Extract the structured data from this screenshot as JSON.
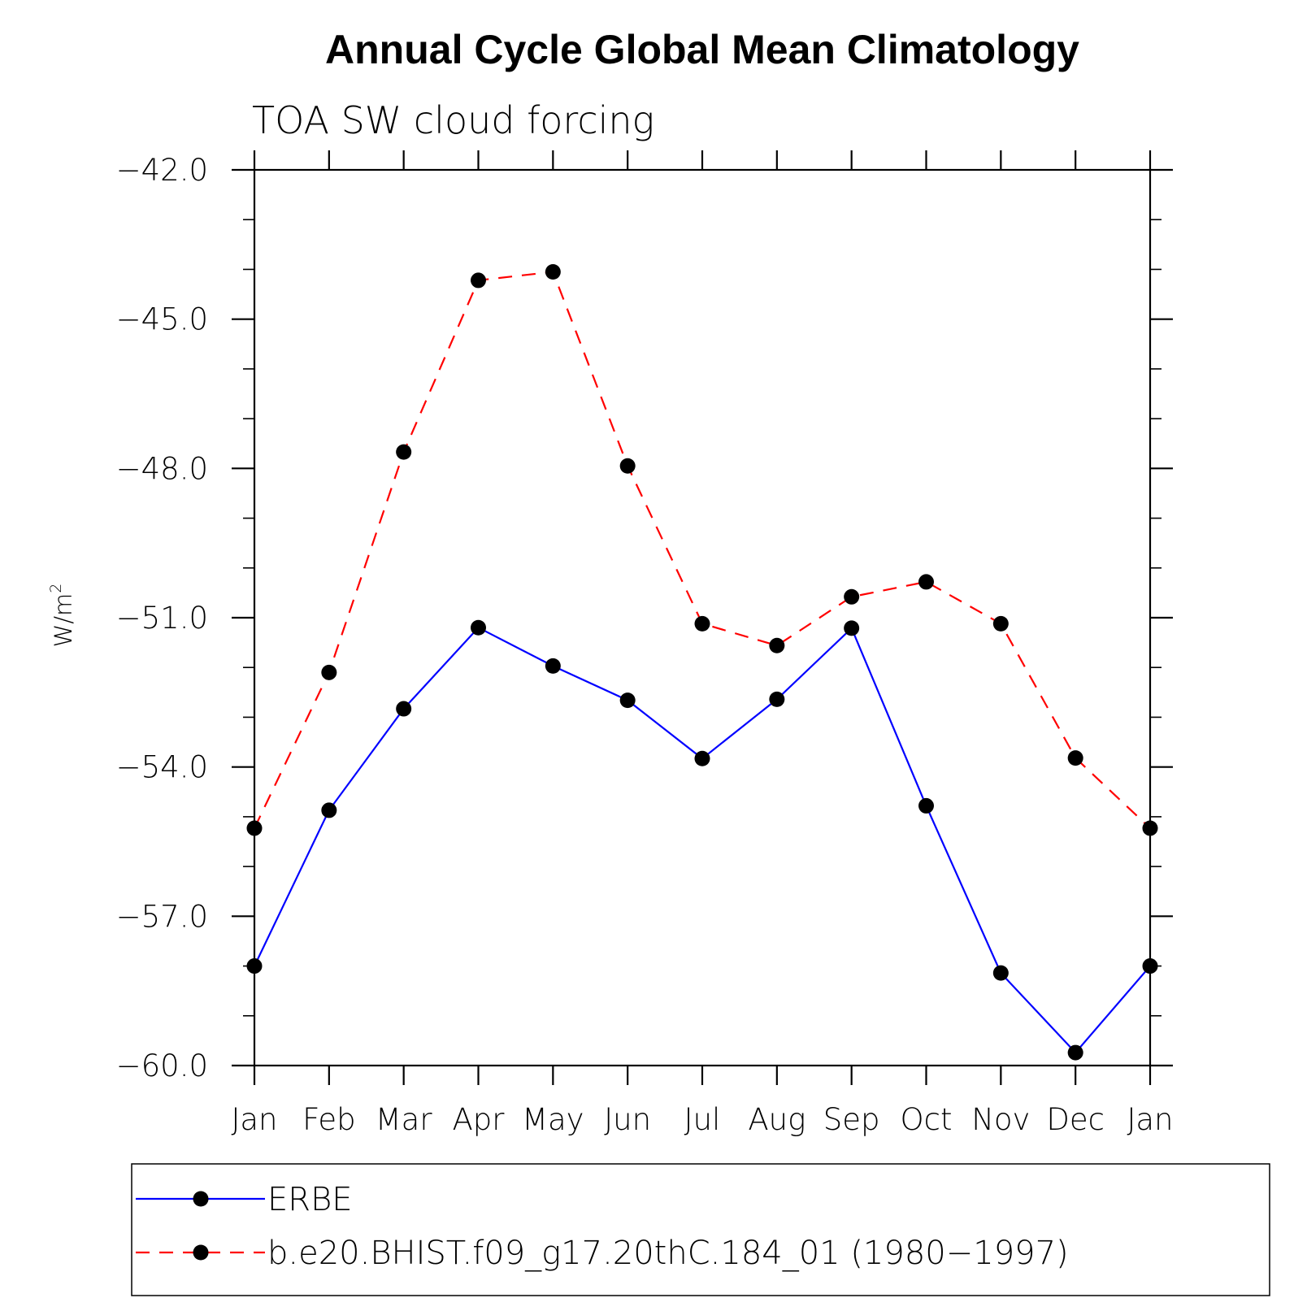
{
  "chart_data": {
    "type": "line",
    "title": "Annual Cycle Global Mean Climatology",
    "subtitle": "TOA SW cloud forcing",
    "ylabel": "W/m",
    "ylabel_sup": "2",
    "xlabel": "",
    "categories": [
      "Jan",
      "Feb",
      "Mar",
      "Apr",
      "May",
      "Jun",
      "Jul",
      "Aug",
      "Sep",
      "Oct",
      "Nov",
      "Dec",
      "Jan"
    ],
    "ylim": [
      -60.0,
      -42.0
    ],
    "yticks": [
      -42.0,
      -45.0,
      -48.0,
      -51.0,
      -54.0,
      -57.0,
      -60.0
    ],
    "ytick_labels": [
      "−42.0",
      "−45.0",
      "−48.0",
      "−51.0",
      "−54.0",
      "−57.0",
      "−60.0"
    ],
    "yminor_step": 1.0,
    "grid": false,
    "legend_position": "bottom",
    "series": [
      {
        "name": "ERBE",
        "color": "#0000ff",
        "dash": "solid",
        "values": [
          -58.0,
          -54.87,
          -52.83,
          -51.2,
          -51.97,
          -52.66,
          -53.83,
          -52.64,
          -51.21,
          -54.78,
          -58.14,
          -59.74,
          -58.0
        ]
      },
      {
        "name": "b.e20.BHIST.f09_g17.20thC.184_01 (1980−1997)",
        "color": "#ff0000",
        "dash": "dashed",
        "values": [
          -55.23,
          -52.1,
          -47.67,
          -44.22,
          -44.05,
          -47.95,
          -51.12,
          -51.56,
          -50.58,
          -50.28,
          -51.12,
          -53.82,
          -55.23
        ]
      }
    ]
  }
}
